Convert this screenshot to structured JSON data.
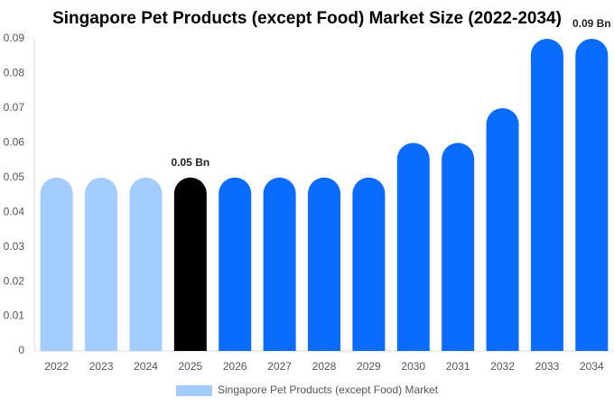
{
  "chart_data": {
    "type": "bar",
    "title": "Singapore Pet Products (except Food) Market Size (2022-2034)",
    "categories": [
      "2022",
      "2023",
      "2024",
      "2025",
      "2026",
      "2027",
      "2028",
      "2029",
      "2030",
      "2031",
      "2032",
      "2033",
      "2034"
    ],
    "series": [
      {
        "name": "Singapore Pet Products (except Food) Market",
        "color": "#a3cdff",
        "values": [
          0.05,
          0.05,
          0.05,
          0.05,
          0.05,
          0.05,
          0.05,
          0.05,
          0.06,
          0.06,
          0.07,
          0.09,
          0.09
        ],
        "value_labels": [
          null,
          null,
          null,
          "0.05 Bn",
          null,
          null,
          null,
          null,
          null,
          null,
          null,
          null,
          "0.09 Bn"
        ],
        "colors": [
          "#a3cdff",
          "#a3cdff",
          "#a3cdff",
          "#000000",
          "#0a6cff",
          "#0a6cff",
          "#0a6cff",
          "#0a6cff",
          "#0a6cff",
          "#0a6cff",
          "#0a6cff",
          "#0a6cff",
          "#0a6cff"
        ]
      }
    ],
    "ylim": [
      0,
      0.09
    ],
    "yticks": [
      0,
      0.01,
      0.02,
      0.03,
      0.04,
      0.05,
      0.06,
      0.07,
      0.08,
      0.09
    ],
    "grid": false
  }
}
